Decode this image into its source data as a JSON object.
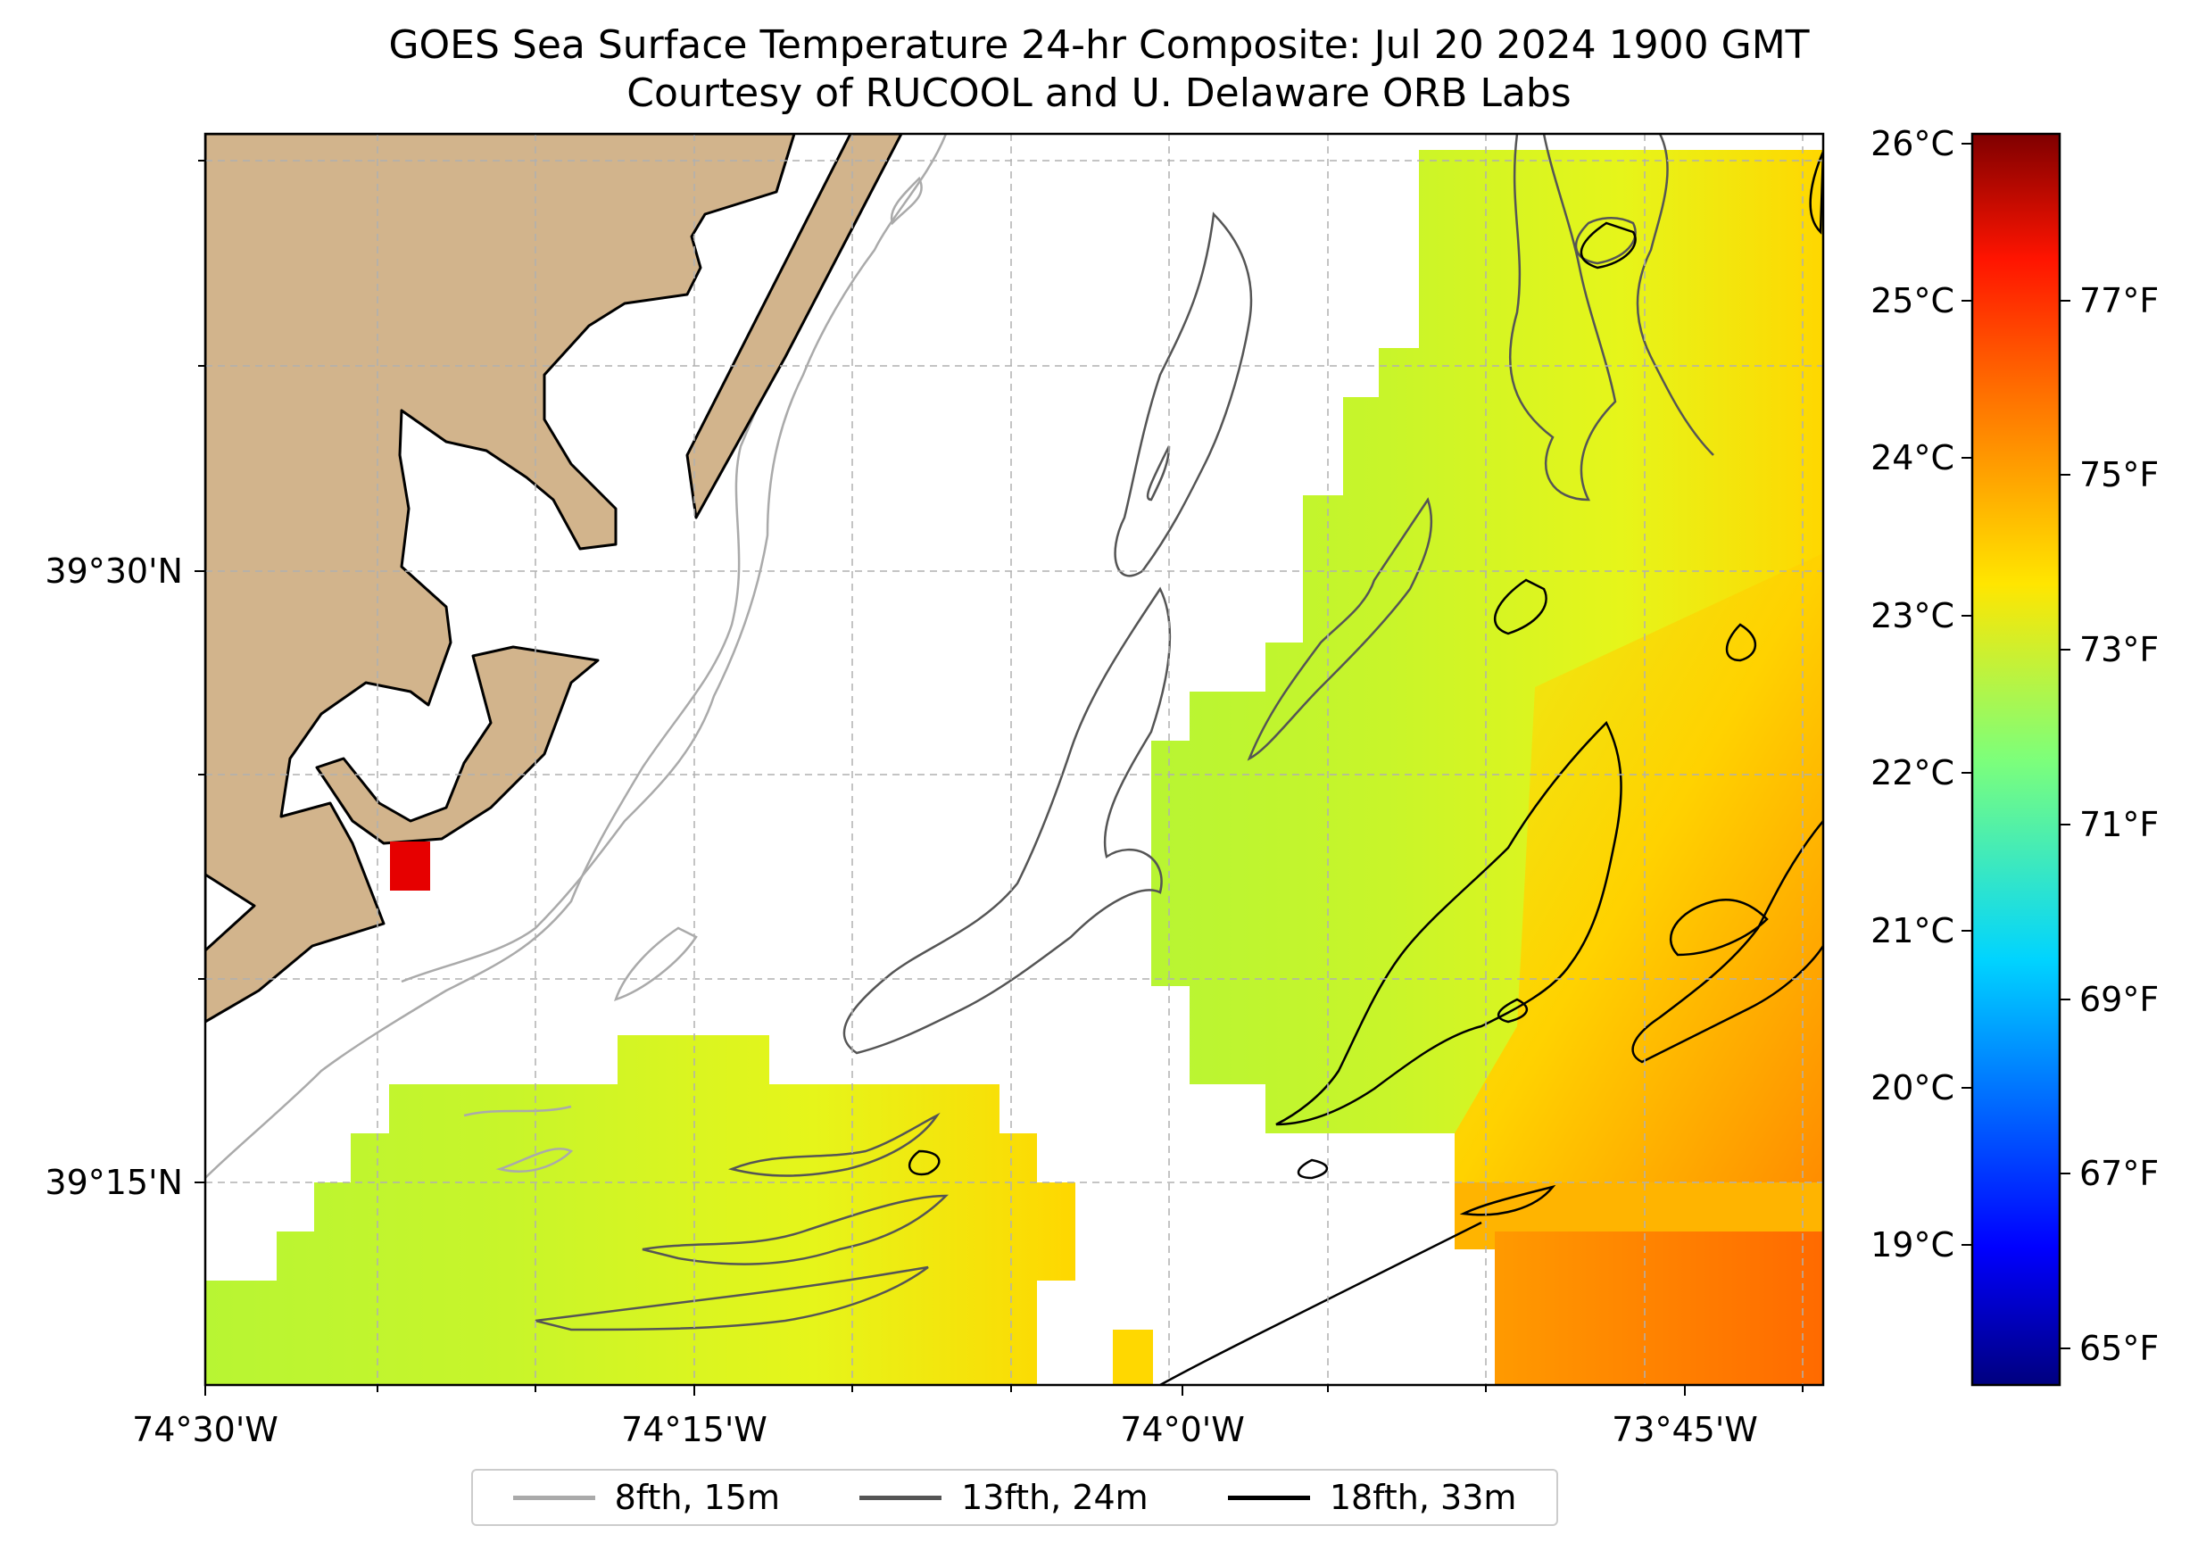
{
  "title": {
    "line1": "GOES Sea Surface Temperature 24-hr Composite: Jul 20 2024 1900 GMT",
    "line2": "Courtesy of RUCOOL and U. Delaware ORB Labs"
  },
  "map": {
    "lon_labels": [
      "74°30'W",
      "74°15'W",
      "74°0'W",
      "73°45'W"
    ],
    "lat_labels": [
      "39°30'N",
      "39°15'N"
    ],
    "grid": true,
    "land_color": "#d2b48c",
    "marker_color": "#e60000"
  },
  "colorbar": {
    "celsius_labels": [
      "26°C",
      "25°C",
      "24°C",
      "23°C",
      "22°C",
      "21°C",
      "20°C",
      "19°C"
    ],
    "fahrenheit_labels": [
      "77°F",
      "75°F",
      "73°F",
      "71°F",
      "69°F",
      "67°F",
      "65°F"
    ],
    "colormap": "jet"
  },
  "legend": {
    "items": [
      {
        "label": "8fth, 15m",
        "color": "#aaaaaa"
      },
      {
        "label": "13fth, 24m",
        "color": "#555555"
      },
      {
        "label": "18fth, 33m",
        "color": "#000000"
      }
    ]
  }
}
